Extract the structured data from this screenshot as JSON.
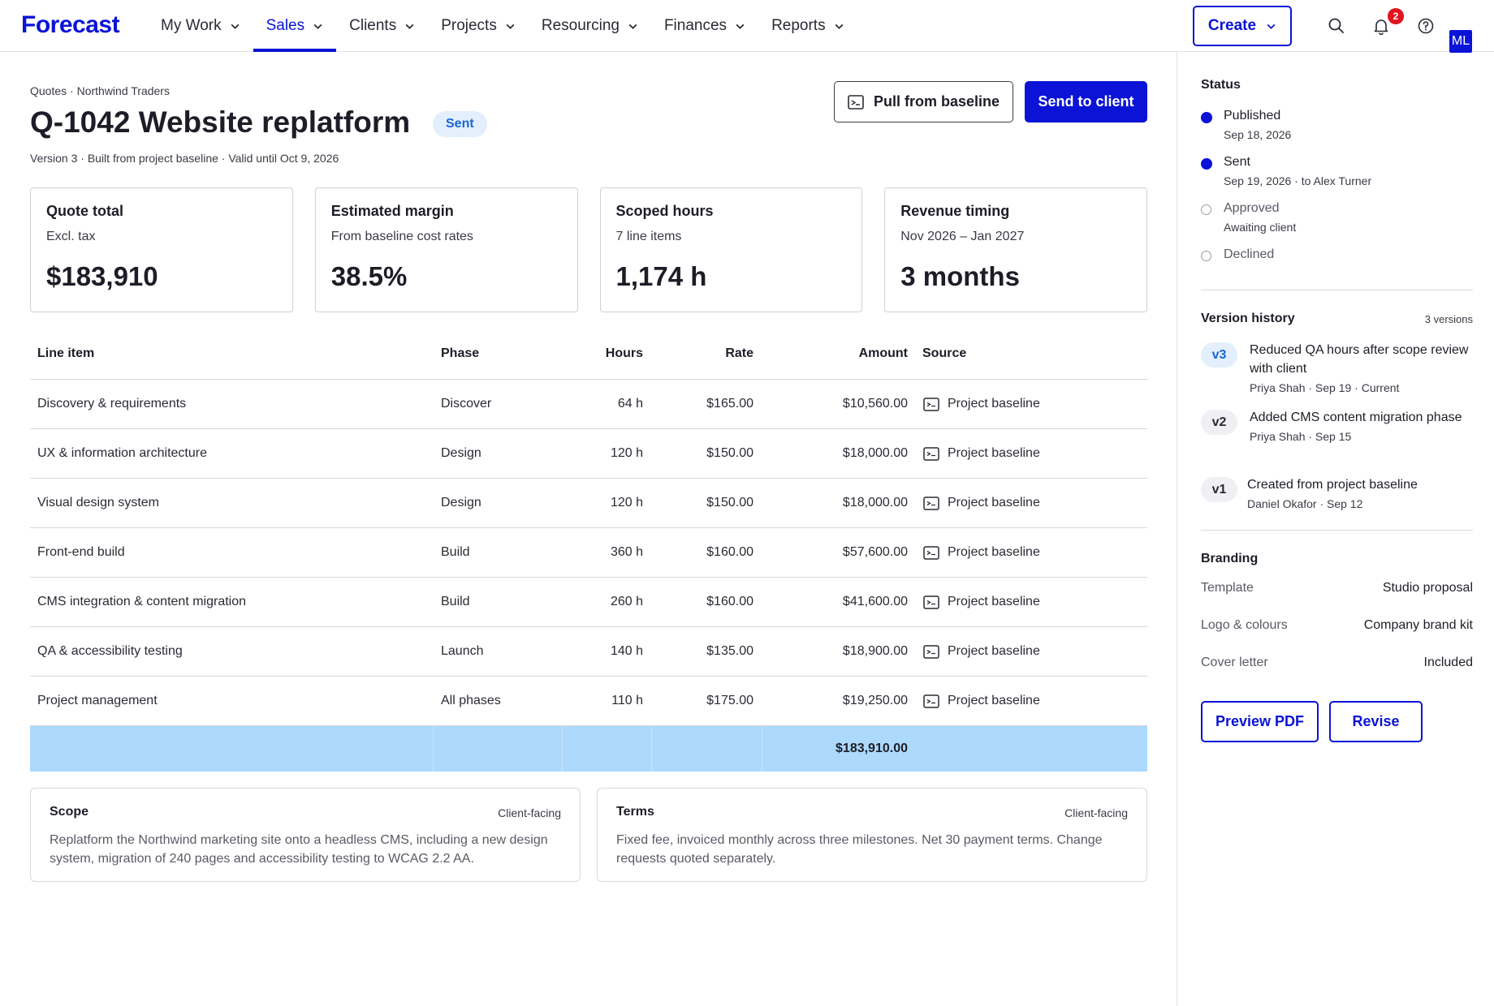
{
  "app": {
    "logo": "Forecast",
    "nav": [
      {
        "label": "My Work",
        "active": false
      },
      {
        "label": "Sales",
        "active": true
      },
      {
        "label": "Clients",
        "active": false
      },
      {
        "label": "Projects",
        "active": false
      },
      {
        "label": "Resourcing",
        "active": false
      },
      {
        "label": "Finances",
        "active": false
      },
      {
        "label": "Reports",
        "active": false
      }
    ],
    "create_label": "Create",
    "notification_count": "2",
    "avatar_initials": "ML",
    "accent_color": "#0a13d6"
  },
  "quote": {
    "breadcrumb": "Quotes · Northwind Traders",
    "title": "Q-1042 Website replatform",
    "status": "Sent",
    "subtitle": "Version 3 · Built from project baseline · Valid until Oct 9, 2026",
    "pull_label": "Pull from baseline",
    "send_label": "Send to client"
  },
  "kpis": [
    {
      "label": "Quote total",
      "sub": "Excl. tax",
      "value": "$183,910"
    },
    {
      "label": "Estimated margin",
      "sub": "From baseline cost rates",
      "value": "38.5%"
    },
    {
      "label": "Scoped hours",
      "sub": "7 line items",
      "value": "1,174 h"
    },
    {
      "label": "Revenue timing",
      "sub": "Nov 2026 – Jan 2027",
      "value": "3 months"
    }
  ],
  "table": {
    "headers": {
      "item": "Line item",
      "phase": "Phase",
      "hours": "Hours",
      "rate": "Rate",
      "amount": "Amount",
      "source": "Source"
    },
    "rows": [
      {
        "item": "Discovery & requirements",
        "phase": "Discover",
        "hours": "64 h",
        "rate": "$165.00",
        "amount": "$10,560.00",
        "source": "Project baseline"
      },
      {
        "item": "UX & information architecture",
        "phase": "Design",
        "hours": "120 h",
        "rate": "$150.00",
        "amount": "$18,000.00",
        "source": "Project baseline"
      },
      {
        "item": "Visual design system",
        "phase": "Design",
        "hours": "120 h",
        "rate": "$150.00",
        "amount": "$18,000.00",
        "source": "Project baseline"
      },
      {
        "item": "Front-end build",
        "phase": "Build",
        "hours": "360 h",
        "rate": "$160.00",
        "amount": "$57,600.00",
        "source": "Project baseline"
      },
      {
        "item": "CMS integration & content migration",
        "phase": "Build",
        "hours": "260 h",
        "rate": "$160.00",
        "amount": "$41,600.00",
        "source": "Project baseline"
      },
      {
        "item": "QA & accessibility testing",
        "phase": "Launch",
        "hours": "140 h",
        "rate": "$135.00",
        "amount": "$18,900.00",
        "source": "Project baseline"
      },
      {
        "item": "Project management",
        "phase": "All phases",
        "hours": "110 h",
        "rate": "$175.00",
        "amount": "$19,250.00",
        "source": "Project baseline"
      }
    ],
    "total": "$183,910.00"
  },
  "cards": [
    {
      "title": "Scope",
      "tag": "Client-facing",
      "body": "Replatform the Northwind marketing site onto a headless CMS, including a new design system, migration of 240 pages and accessibility testing to WCAG 2.2 AA."
    },
    {
      "title": "Terms",
      "tag": "Client-facing",
      "body": "Fixed fee, invoiced monthly across three milestones. Net 30 payment terms. Change requests quoted separately."
    }
  ],
  "sidebar": {
    "status_title": "Status",
    "statuses": [
      {
        "name": "Published",
        "meta": "Sep 18, 2026",
        "done": true
      },
      {
        "name": "Sent",
        "meta": "Sep 19, 2026 · to Alex Turner",
        "done": true
      },
      {
        "name": "Approved",
        "meta": "Awaiting client",
        "done": false
      },
      {
        "name": "Declined",
        "meta": "",
        "done": false
      }
    ],
    "version_title": "Version history",
    "version_count": "3 versions",
    "versions": [
      {
        "tag": "v3",
        "text": "Reduced QA hours after scope review with client",
        "meta": "Priya Shah · Sep 19 · Current"
      },
      {
        "tag": "v2",
        "text": "Added CMS content migration phase",
        "meta": "Priya Shah · Sep 15"
      },
      {
        "tag": "v1",
        "text": "Created from project baseline",
        "meta": "Daniel Okafor · Sep 12"
      }
    ],
    "branding_title": "Branding",
    "branding": [
      {
        "key": "Template",
        "value": "Studio proposal"
      },
      {
        "key": "Logo & colours",
        "value": "Company brand kit"
      },
      {
        "key": "Cover letter",
        "value": "Included"
      }
    ],
    "preview_label": "Preview PDF",
    "revise_label": "Revise"
  }
}
